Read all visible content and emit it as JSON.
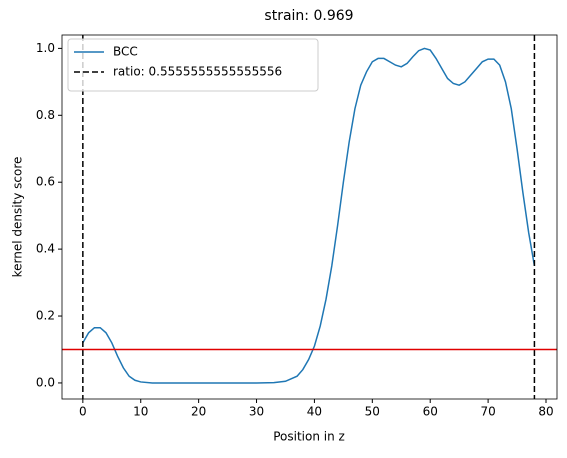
{
  "chart_data": {
    "type": "line",
    "title": "strain: 0.969",
    "xlabel": "Position in z",
    "ylabel": "kernel density score",
    "x": [
      0,
      1,
      2,
      3,
      4,
      5,
      6,
      7,
      8,
      9,
      10,
      12,
      15,
      20,
      25,
      30,
      33,
      35,
      37,
      38,
      39,
      40,
      41,
      42,
      43,
      44,
      45,
      46,
      47,
      48,
      49,
      50,
      51,
      52,
      53,
      54,
      55,
      56,
      57,
      58,
      59,
      60,
      61,
      62,
      63,
      64,
      65,
      66,
      67,
      68,
      69,
      70,
      71,
      72,
      73,
      74,
      75,
      76,
      77,
      78
    ],
    "series": [
      {
        "name": "BCC",
        "color": "#1f77b4",
        "values": [
          0.12,
          0.15,
          0.165,
          0.165,
          0.15,
          0.12,
          0.08,
          0.045,
          0.02,
          0.008,
          0.003,
          0.0,
          0.0,
          0.0,
          0.0,
          0.0,
          0.001,
          0.005,
          0.02,
          0.04,
          0.07,
          0.11,
          0.17,
          0.25,
          0.35,
          0.47,
          0.6,
          0.72,
          0.82,
          0.89,
          0.93,
          0.96,
          0.97,
          0.97,
          0.96,
          0.95,
          0.945,
          0.955,
          0.975,
          0.993,
          1.0,
          0.995,
          0.97,
          0.94,
          0.91,
          0.895,
          0.89,
          0.9,
          0.92,
          0.94,
          0.96,
          0.968,
          0.968,
          0.95,
          0.9,
          0.82,
          0.7,
          0.57,
          0.45,
          0.35
        ]
      }
    ],
    "vlines": {
      "name": "ratio: 0.5555555555555556",
      "positions": [
        0,
        78
      ],
      "color": "#000000",
      "linestyle": "dashed"
    },
    "hline": {
      "value": 0.1,
      "color": "#e00000"
    },
    "legend": "upper left",
    "xlim": [
      -3.6,
      81.9
    ],
    "ylim": [
      -0.048,
      1.04
    ],
    "xticks": [
      0,
      10,
      20,
      30,
      40,
      50,
      60,
      70,
      80
    ],
    "yticks": [
      {
        "value": 0,
        "label": "0.0"
      },
      0.2,
      0.4,
      0.6,
      0.8,
      {
        "value": 1,
        "label": "1.0"
      }
    ]
  }
}
